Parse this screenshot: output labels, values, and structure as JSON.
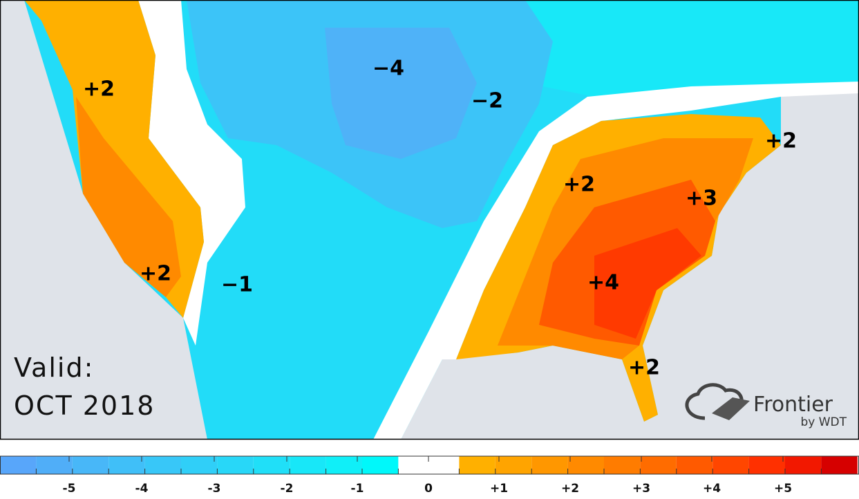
{
  "map": {
    "labels": [
      "+2",
      "−4",
      "−2",
      "+2",
      "+2",
      "+3",
      "+2",
      "−1",
      "+4",
      "+2"
    ]
  },
  "valid": {
    "label": "Valid:",
    "date": "OCT 2018"
  },
  "logo": {
    "name": "Frontier",
    "by": "by WDT"
  },
  "legend": {
    "colors": [
      "#58a6fa",
      "#50aef8",
      "#48b7f8",
      "#40bff8",
      "#38c7f8",
      "#30cff8",
      "#28d7f8",
      "#20dff8",
      "#18e7f8",
      "#10eff8",
      "#00f8fa",
      "#ffffff",
      "#ffb000",
      "#ffa400",
      "#ff9700",
      "#ff8a00",
      "#ff7c00",
      "#ff6c00",
      "#ff5a00",
      "#ff4600",
      "#ff3000",
      "#f21800",
      "#d60000"
    ],
    "labels": [
      "-5",
      "-4",
      "-3",
      "-2",
      "-1",
      "0",
      "+1",
      "+2",
      "+3",
      "+4",
      "+5"
    ]
  }
}
